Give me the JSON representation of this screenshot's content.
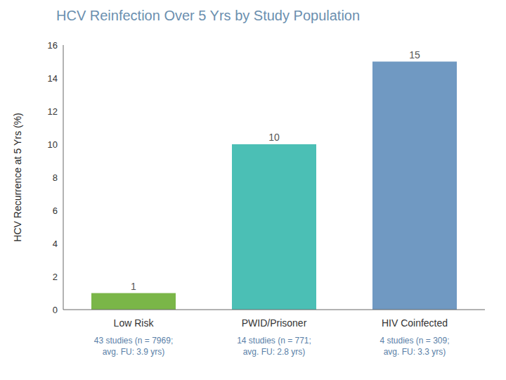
{
  "chart_data": {
    "type": "bar",
    "title": "HCV Reinfection Over 5 Yrs by Study Population",
    "ylabel": "HCV Recurrence at 5 Yrs (%)",
    "categories": [
      "Low Risk",
      "PWID/Prisoner",
      "HIV Coinfected"
    ],
    "values": [
      1,
      10,
      15
    ],
    "colors": [
      "#7ab648",
      "#4bbfb5",
      "#7099c2"
    ],
    "annotations": [
      "43 studies (n = 7969;\navg. FU: 3.9 yrs)",
      "14 studies (n = 771;\navg. FU: 2.8 yrs)",
      "4 studies (n = 309;\navg. FU: 3.3 yrs)"
    ],
    "ylim": [
      0,
      16
    ],
    "yticks": [
      0,
      2,
      4,
      6,
      8,
      10,
      12,
      14,
      16
    ],
    "grid": false,
    "data_labels": true
  }
}
